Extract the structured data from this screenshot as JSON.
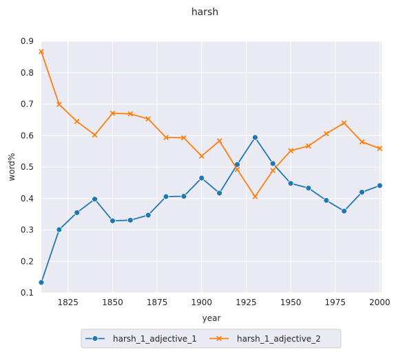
{
  "chart_data": {
    "type": "line",
    "title": "harsh",
    "xlabel": "year",
    "ylabel": "word%",
    "xlim": [
      1810,
      2001
    ],
    "ylim": [
      0.1,
      0.9
    ],
    "x_ticks": [
      1825,
      1850,
      1875,
      1900,
      1925,
      1950,
      1975,
      2000
    ],
    "x_tick_labels": [
      "1825",
      "1850",
      "1875",
      "1900",
      "1925",
      "1950",
      "1975",
      "2000"
    ],
    "y_ticks": [
      0.1,
      0.2,
      0.3,
      0.4,
      0.5,
      0.6,
      0.7,
      0.8,
      0.9
    ],
    "y_tick_labels": [
      "0.1",
      "0.2",
      "0.3",
      "0.4",
      "0.5",
      "0.6",
      "0.7",
      "0.8",
      "0.9"
    ],
    "grid": true,
    "legend_position": "bottom-center",
    "x": [
      1810,
      1820,
      1830,
      1840,
      1850,
      1860,
      1870,
      1880,
      1890,
      1900,
      1910,
      1920,
      1930,
      1940,
      1950,
      1960,
      1970,
      1980,
      1990,
      2000
    ],
    "series": [
      {
        "name": "harsh_1_adjective_1",
        "color": "#1f77b4",
        "marker": "circle",
        "values": [
          0.133,
          0.301,
          0.355,
          0.398,
          0.329,
          0.331,
          0.347,
          0.406,
          0.407,
          0.465,
          0.417,
          0.508,
          0.594,
          0.511,
          0.448,
          0.433,
          0.394,
          0.36,
          0.42,
          0.441
        ]
      },
      {
        "name": "harsh_1_adjective_2",
        "color": "#ff7f0e",
        "marker": "x",
        "values": [
          0.867,
          0.699,
          0.645,
          0.602,
          0.671,
          0.669,
          0.653,
          0.594,
          0.593,
          0.535,
          0.583,
          0.492,
          0.406,
          0.489,
          0.552,
          0.567,
          0.606,
          0.64,
          0.58,
          0.559
        ]
      }
    ]
  }
}
